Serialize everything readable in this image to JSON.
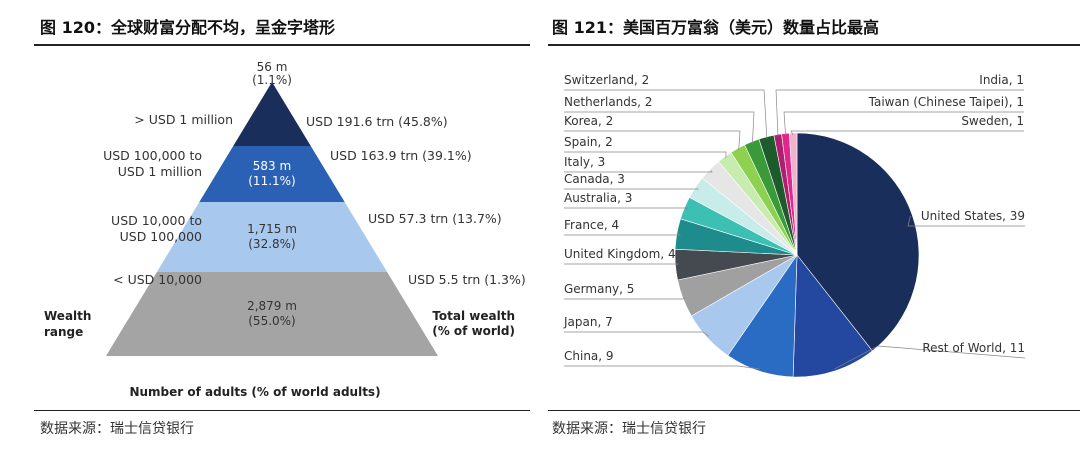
{
  "left": {
    "title": "图 120：全球财富分配不均，呈金字塔形",
    "source": "数据来源：瑞士信贷银行",
    "chart_data": {
      "type": "pyramid",
      "levels": [
        {
          "range_lines": [
            "> USD 1 million"
          ],
          "adults_lines": [
            "56 m",
            "(1.1%)"
          ],
          "adults_m": 56,
          "adults_pct": 1.1,
          "wealth_label": "USD 191.6 trn (45.8%)",
          "wealth_trn": 191.6,
          "wealth_pct": 45.8,
          "color": "#1a2e5c"
        },
        {
          "range_lines": [
            "USD 100,000 to",
            "USD 1 million"
          ],
          "adults_lines": [
            "583 m",
            "(11.1%)"
          ],
          "adults_m": 583,
          "adults_pct": 11.1,
          "wealth_label": "USD 163.9 trn (39.1%)",
          "wealth_trn": 163.9,
          "wealth_pct": 39.1,
          "color": "#2a61b4"
        },
        {
          "range_lines": [
            "USD 10,000 to",
            "USD 100,000"
          ],
          "adults_lines": [
            "1,715 m",
            "(32.8%)"
          ],
          "adults_m": 1715,
          "adults_pct": 32.8,
          "wealth_label": "USD 57.3 trn (13.7%)",
          "wealth_trn": 57.3,
          "wealth_pct": 13.7,
          "color": "#a9c8ee"
        },
        {
          "range_lines": [
            "< USD 10,000"
          ],
          "adults_lines": [
            "2,879 m",
            "(55.0%)"
          ],
          "adults_m": 2879,
          "adults_pct": 55.0,
          "wealth_label": "USD 5.5 trn (1.3%)",
          "wealth_trn": 5.5,
          "wealth_pct": 1.3,
          "color": "#a4a4a4"
        }
      ],
      "left_axis_lines": [
        "Wealth",
        "range"
      ],
      "right_axis_lines": [
        "Total wealth",
        "(% of world)"
      ],
      "xlabel": "Number of adults (% of world adults)"
    }
  },
  "right": {
    "title": "图 121：美国百万富翁（美元）数量占比最高",
    "source": "数据来源：瑞士信贷银行",
    "chart_data": {
      "type": "pie",
      "slices": [
        {
          "label": "United States, 39",
          "name": "United States",
          "value": 39,
          "color": "#1a2e5c"
        },
        {
          "label": "Rest of World, 11",
          "name": "Rest of World",
          "value": 11,
          "color": "#2448a0"
        },
        {
          "label": "China, 9",
          "name": "China",
          "value": 9,
          "color": "#2a6cc4"
        },
        {
          "label": "Japan, 7",
          "name": "Japan",
          "value": 7,
          "color": "#a9c8ee"
        },
        {
          "label": "Germany, 5",
          "name": "Germany",
          "value": 5,
          "color": "#a0a0a0"
        },
        {
          "label": "United Kingdom, 4",
          "name": "United Kingdom",
          "value": 4,
          "color": "#454a50"
        },
        {
          "label": "France, 4",
          "name": "France",
          "value": 4,
          "color": "#1e8c8c"
        },
        {
          "label": "Australia, 3",
          "name": "Australia",
          "value": 3,
          "color": "#3cc0b4"
        },
        {
          "label": "Canada, 3",
          "name": "Canada",
          "value": 3,
          "color": "#c8ecea"
        },
        {
          "label": "Italy, 3",
          "name": "Italy",
          "value": 3,
          "color": "#e6e6e6"
        },
        {
          "label": "Spain, 2",
          "name": "Spain",
          "value": 2,
          "color": "#c8ecb0"
        },
        {
          "label": "Korea, 2",
          "name": "Korea",
          "value": 2,
          "color": "#8ed050"
        },
        {
          "label": "Netherlands, 2",
          "name": "Netherlands",
          "value": 2,
          "color": "#3a9a3a"
        },
        {
          "label": "Switzerland, 2",
          "name": "Switzerland",
          "value": 2,
          "color": "#1d5a2c"
        },
        {
          "label": "India, 1",
          "name": "India",
          "value": 1,
          "color": "#b01e6e"
        },
        {
          "label": "Taiwan (Chinese Taipei), 1",
          "name": "Taiwan (Chinese Taipei)",
          "value": 1,
          "color": "#e0288c"
        },
        {
          "label": "Sweden, 1",
          "name": "Sweden",
          "value": 1,
          "color": "#f2b2cc"
        }
      ]
    }
  }
}
